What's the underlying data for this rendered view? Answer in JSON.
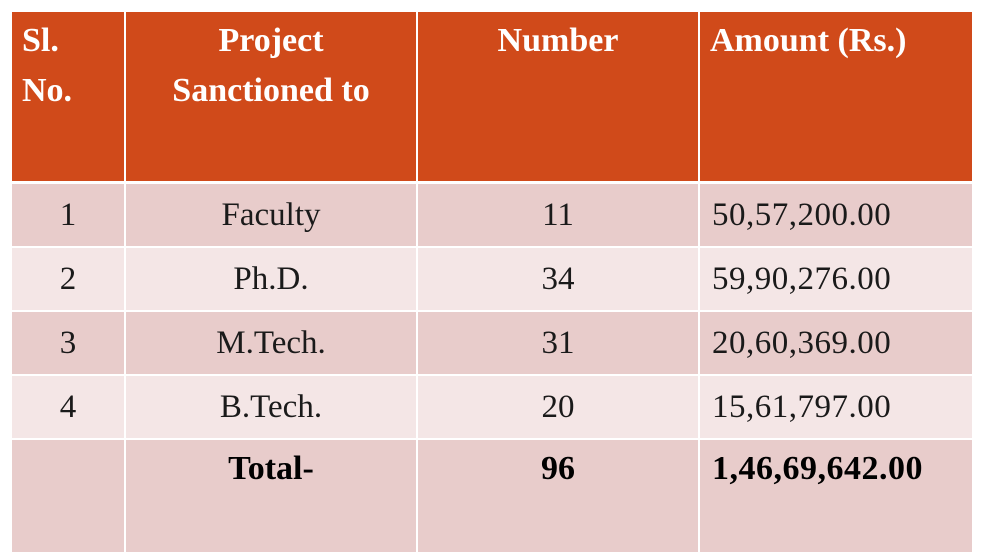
{
  "header": {
    "sl_no": [
      "Sl.",
      "No."
    ],
    "project": [
      "Project",
      "Sanctioned to"
    ],
    "number": "Number",
    "amount": "Amount (Rs.)"
  },
  "rows": [
    {
      "sl": "1",
      "project": "Faculty",
      "number": "11",
      "amount": "50,57,200.00"
    },
    {
      "sl": "2",
      "project": "Ph.D.",
      "number": "34",
      "amount": "59,90,276.00"
    },
    {
      "sl": "3",
      "project": "M.Tech.",
      "number": "31",
      "amount": "20,60,369.00"
    },
    {
      "sl": "4",
      "project": "B.Tech.",
      "number": "20",
      "amount": "15,61,797.00"
    }
  ],
  "total": {
    "label": "Total-",
    "number": "96",
    "amount": "1,46,69,642.00"
  },
  "colors": {
    "header_bg": "#d04a1a",
    "row_dark": "#e8cccb",
    "row_light": "#f4e6e6"
  }
}
